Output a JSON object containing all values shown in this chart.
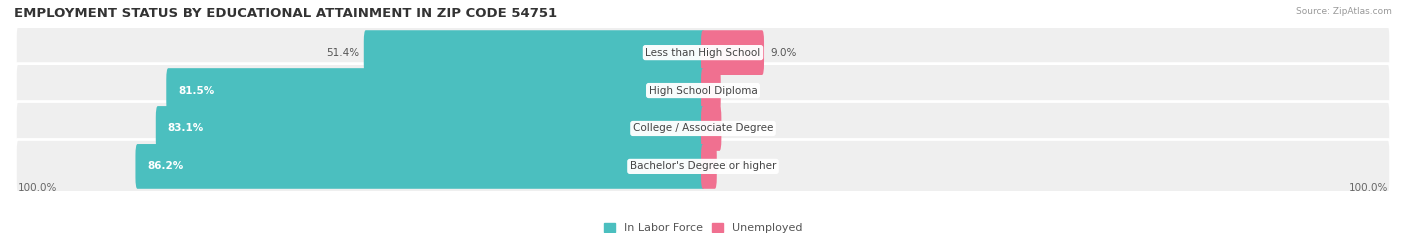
{
  "title": "EMPLOYMENT STATUS BY EDUCATIONAL ATTAINMENT IN ZIP CODE 54751",
  "source": "Source: ZipAtlas.com",
  "categories": [
    "Less than High School",
    "High School Diploma",
    "College / Associate Degree",
    "Bachelor's Degree or higher"
  ],
  "labor_force": [
    51.4,
    81.5,
    83.1,
    86.2
  ],
  "unemployed": [
    9.0,
    2.4,
    2.5,
    1.8
  ],
  "labor_force_color": "#4bbfbf",
  "unemployed_color": "#f07090",
  "row_bg_color": "#efefef",
  "row_bg_edge": "#e0e0e0",
  "left_label": "100.0%",
  "right_label": "100.0%",
  "title_fontsize": 9.5,
  "label_fontsize": 8,
  "value_fontsize": 7.5,
  "tick_fontsize": 7.5,
  "legend_label_labor": "In Labor Force",
  "legend_label_unemployed": "Unemployed",
  "xlim_left": -105,
  "xlim_right": 105,
  "lf_label_threshold": 65
}
